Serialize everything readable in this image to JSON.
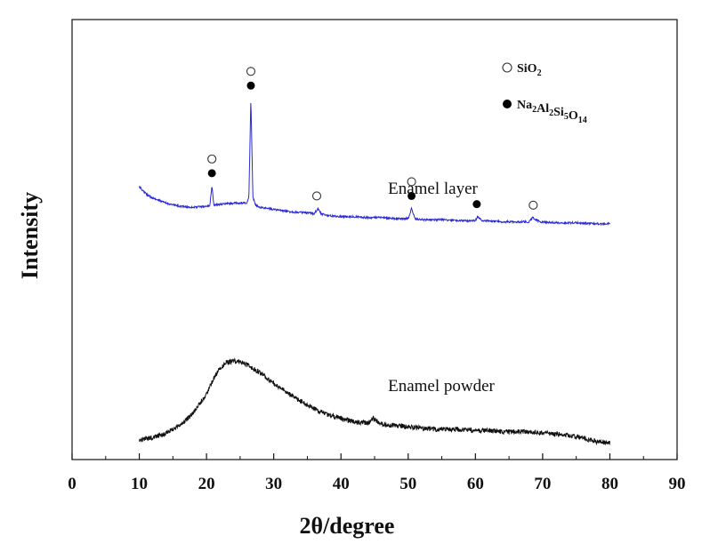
{
  "chart_data": {
    "type": "line",
    "xlabel": "2θ/degree",
    "ylabel": "Intensity",
    "xlim": [
      0,
      90
    ],
    "x_ticks": [
      "0",
      "10",
      "20",
      "30",
      "40",
      "50",
      "60",
      "70",
      "80",
      "90"
    ],
    "y_ticks_labeled": false,
    "grid": false,
    "series": [
      {
        "name": "Enamel layer",
        "color": "#2a2ad6",
        "x": [
          10,
          11,
          12,
          14,
          16,
          18,
          20,
          20.5,
          20.8,
          21.1,
          22,
          24,
          26,
          26.3,
          26.6,
          26.9,
          27.3,
          28,
          30,
          32,
          34,
          36,
          36.6,
          37,
          38,
          40,
          42,
          44,
          46,
          48,
          50,
          50.5,
          51,
          52,
          55,
          58,
          60,
          60.3,
          61,
          64,
          66,
          68,
          68.5,
          69.5,
          72,
          75,
          78,
          80
        ],
        "y": [
          56,
          49,
          45,
          40,
          37,
          36,
          37,
          38,
          57,
          38,
          39,
          40,
          40,
          45,
          142,
          46,
          38,
          36,
          34,
          32,
          31,
          30,
          35,
          30,
          28,
          27,
          27,
          26,
          26,
          25,
          25,
          35,
          25,
          24,
          24,
          23,
          23,
          27,
          23,
          22,
          22,
          22,
          26,
          22,
          21,
          21,
          20,
          20
        ]
      },
      {
        "name": "Enamel powder",
        "color": "#111111",
        "x": [
          10,
          12,
          14,
          16,
          18,
          20,
          21,
          22,
          23,
          24,
          25,
          26,
          28,
          30,
          32,
          34,
          36,
          38,
          40,
          42,
          44,
          44.8,
          46,
          48,
          50,
          52,
          54,
          56,
          58,
          60,
          62,
          64,
          66,
          68,
          70,
          72,
          74,
          76,
          78,
          80
        ],
        "y": [
          2,
          4,
          8,
          14,
          24,
          40,
          52,
          61,
          66,
          67,
          66,
          64,
          57,
          49,
          41,
          34,
          28,
          23,
          20,
          17,
          16,
          20,
          15,
          14,
          13,
          12,
          11,
          11,
          11,
          10,
          10,
          9,
          9,
          9,
          8,
          7,
          6,
          4,
          1,
          0
        ]
      }
    ],
    "annotations": [
      {
        "text": "Enamel layer",
        "x": 47,
        "series": "Enamel layer"
      },
      {
        "text": "Enamel powder",
        "x": 47,
        "series": "Enamel powder"
      }
    ],
    "legend": {
      "placement": "top-right",
      "entries": [
        {
          "marker": "open-circle",
          "text": "SiO",
          "sub": "2"
        },
        {
          "marker": "filled-circle",
          "parts": [
            [
              "Na",
              ""
            ],
            [
              "Al",
              "2"
            ],
            [
              "Si",
              "2"
            ],
            [
              "O",
              "5"
            ],
            [
              "",
              "14"
            ]
          ]
        }
      ]
    },
    "peak_markers": [
      {
        "x": 20.8,
        "marker": "open-circle",
        "level": 2
      },
      {
        "x": 20.8,
        "marker": "filled-circle",
        "level": 1
      },
      {
        "x": 26.6,
        "marker": "open-circle",
        "level": 2
      },
      {
        "x": 26.6,
        "marker": "filled-circle",
        "level": 1
      },
      {
        "x": 36.4,
        "marker": "open-circle",
        "level": 1
      },
      {
        "x": 50.5,
        "marker": "open-circle",
        "level": 2
      },
      {
        "x": 50.5,
        "marker": "filled-circle",
        "level": 1
      },
      {
        "x": 60.2,
        "marker": "filled-circle",
        "level": 1
      },
      {
        "x": 68.6,
        "marker": "open-circle",
        "level": 1
      }
    ]
  }
}
